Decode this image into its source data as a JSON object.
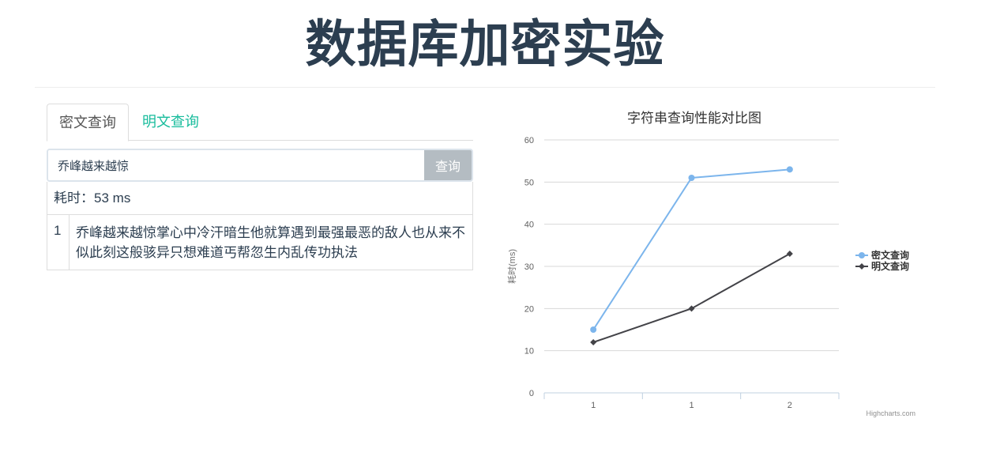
{
  "page": {
    "title": "数据库加密实验"
  },
  "tabs": [
    {
      "label": "密文查询",
      "active": true
    },
    {
      "label": "明文查询",
      "active": false
    }
  ],
  "search": {
    "value": "乔峰越来越惊",
    "button_label": "查询"
  },
  "results": {
    "timing_label": "耗时：",
    "timing_value": "53",
    "timing_unit": "ms",
    "rows": [
      {
        "index": "1",
        "text": "乔峰越来越惊掌心中冷汗暗生他就算遇到最强最恶的敌人也从来不似此刻这般骇异只想难道丐帮忽生内乱传功执法"
      }
    ]
  },
  "chart_data": {
    "type": "line",
    "title": "字符串查询性能对比图",
    "xlabel": "",
    "ylabel": "耗时(ms)",
    "categories": [
      "1",
      "1",
      "2"
    ],
    "ylim": [
      0,
      60
    ],
    "yticks": [
      0,
      10,
      20,
      30,
      40,
      50,
      60
    ],
    "grid": true,
    "legend_position": "right",
    "series": [
      {
        "name": "密文查询",
        "values": [
          15,
          51,
          53
        ],
        "color": "#7cb5ec",
        "marker": "circle"
      },
      {
        "name": "明文查询",
        "values": [
          12,
          20,
          33
        ],
        "color": "#434348",
        "marker": "diamond"
      }
    ],
    "credits": "Highcharts.com"
  }
}
